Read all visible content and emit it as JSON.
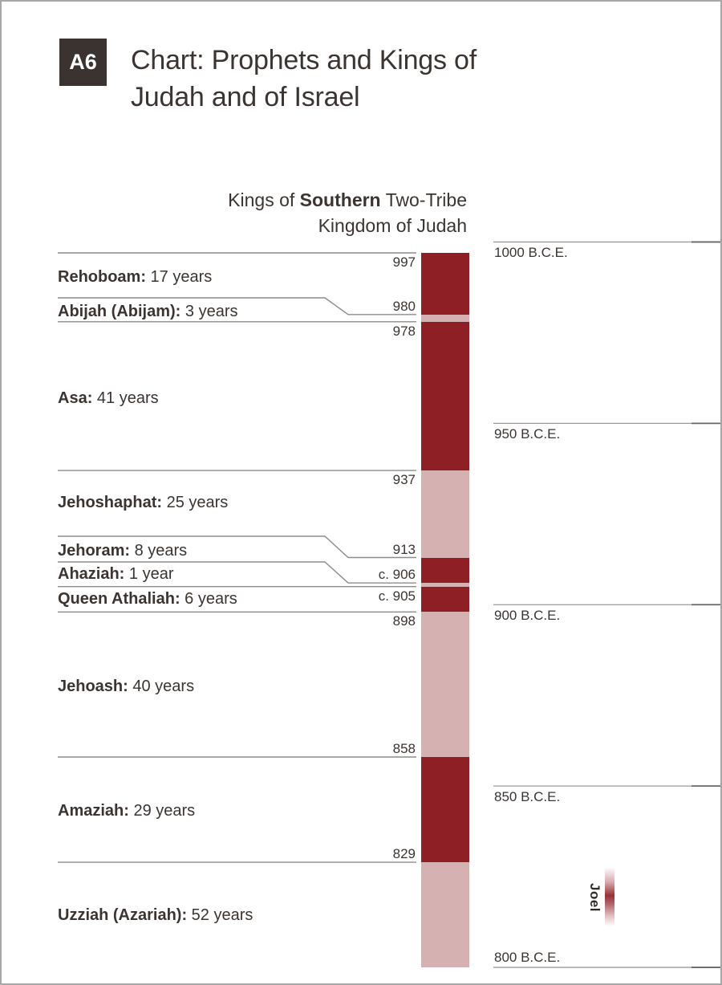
{
  "header": {
    "badge": "A6",
    "title": "Chart: Prophets and Kings of Judah and of Israel"
  },
  "subtitle": {
    "line1_pre": "Kings of ",
    "line1_bold": "Southern",
    "line1_post": " Two-Tribe",
    "line2": "Kingdom of Judah"
  },
  "chart_data": {
    "type": "bar",
    "title": "Kings of Southern Two-Tribe Kingdom of Judah",
    "orientation": "vertical-timeline-descending-years",
    "axis": {
      "unit": "B.C.E.",
      "ticks": [
        "1000 B.C.E.",
        "950 B.C.E.",
        "900 B.C.E.",
        "850 B.C.E.",
        "800 B.C.E."
      ],
      "tick_years": [
        1000,
        950,
        900,
        850,
        800
      ],
      "range": [
        1000,
        800
      ],
      "direction": "older-at-top",
      "gridlines": "right-side-horizontal"
    },
    "colors": {
      "dark": "#8e1f24",
      "light": "#d5b1b2",
      "text": "#3b3430",
      "rule": "#8c8c8c"
    },
    "kings": [
      {
        "name": "Rehoboam",
        "reign": "17 years",
        "start_year": 997,
        "end_year": 980,
        "year_label": "997",
        "shade": "dark"
      },
      {
        "name": "Abijah (Abijam)",
        "reign": "3 years",
        "start_year": 980,
        "end_year": 978,
        "year_label": "980",
        "shade": "light"
      },
      {
        "name": "Asa",
        "reign": "41 years",
        "start_year": 978,
        "end_year": 937,
        "year_label": "978",
        "shade": "dark"
      },
      {
        "name": "Jehoshaphat",
        "reign": "25 years",
        "start_year": 937,
        "end_year": 913,
        "year_label": "937",
        "shade": "light"
      },
      {
        "name": "Jehoram",
        "reign": "8 years",
        "start_year": 913,
        "end_year": 906,
        "year_label": "913",
        "shade": "dark"
      },
      {
        "name": "Ahaziah",
        "reign": "1 year",
        "start_year": 906,
        "end_year": 905,
        "year_label": "c. 906",
        "shade": "light"
      },
      {
        "name": "Queen Athaliah",
        "reign": "6 years",
        "start_year": 905,
        "end_year": 898,
        "year_label": "c. 905",
        "shade": "dark"
      },
      {
        "name": "Jehoash",
        "reign": "40 years",
        "start_year": 898,
        "end_year": 858,
        "year_label": "898",
        "shade": "light"
      },
      {
        "name": "Amaziah",
        "reign": "29 years",
        "start_year": 858,
        "end_year": 829,
        "year_label": "858",
        "shade": "dark"
      },
      {
        "name": "Uzziah (Azariah)",
        "reign": "52 years",
        "start_year": 829,
        "end_year": 800,
        "year_label": "829",
        "shade": "light",
        "clipped_at_bottom": true
      }
    ],
    "prophets": [
      {
        "name": "Joel"
      }
    ]
  }
}
